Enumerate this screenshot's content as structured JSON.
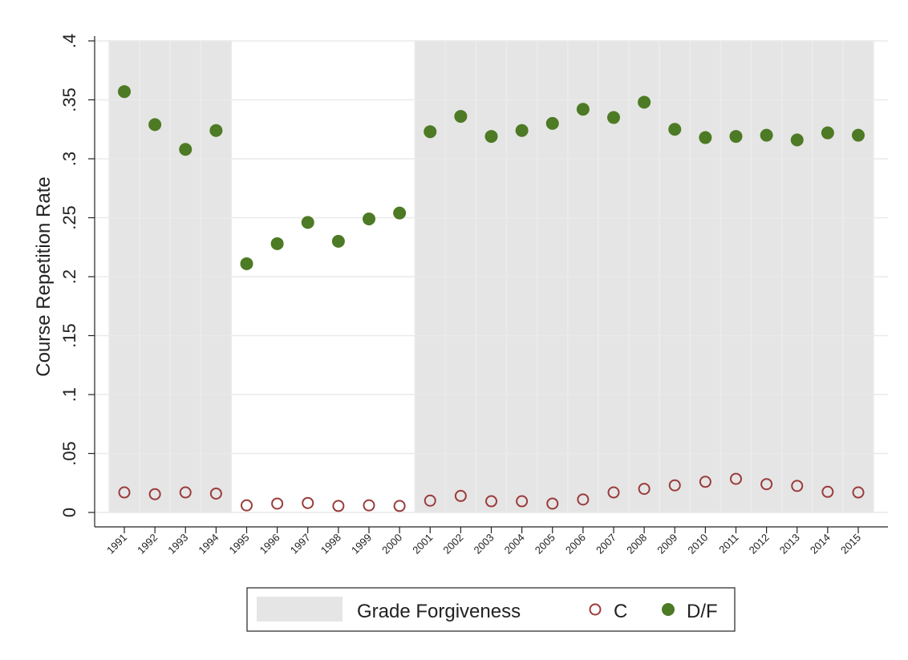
{
  "chart_data": {
    "type": "scatter",
    "y_label": "Course Repetition Rate",
    "categories": [
      "1991",
      "1992",
      "1993",
      "1994",
      "1995",
      "1996",
      "1997",
      "1998",
      "1999",
      "2000",
      "2001",
      "2002",
      "2003",
      "2004",
      "2005",
      "2006",
      "2007",
      "2008",
      "2009",
      "2010",
      "2011",
      "2012",
      "2013",
      "2014",
      "2015"
    ],
    "shaded": [
      true,
      true,
      true,
      true,
      false,
      false,
      false,
      false,
      false,
      false,
      true,
      true,
      true,
      true,
      true,
      true,
      true,
      true,
      true,
      true,
      true,
      true,
      true,
      true,
      true
    ],
    "shade_label": "Grade Forgiveness",
    "shade_color": "#e5e5e5",
    "series": [
      {
        "name": "C",
        "color": "#9b3b3b",
        "hollow": true,
        "values": [
          0.017,
          0.0155,
          0.017,
          0.016,
          0.006,
          0.0075,
          0.008,
          0.0055,
          0.006,
          0.0055,
          0.01,
          0.014,
          0.0095,
          0.0095,
          0.0075,
          0.011,
          0.017,
          0.02,
          0.023,
          0.026,
          0.0285,
          0.024,
          0.0225,
          0.0175,
          0.017
        ]
      },
      {
        "name": "D/F",
        "color": "#4d7a24",
        "hollow": false,
        "values": [
          0.357,
          0.329,
          0.308,
          0.324,
          0.211,
          0.228,
          0.246,
          0.23,
          0.249,
          0.254,
          0.323,
          0.336,
          0.319,
          0.324,
          0.33,
          0.342,
          0.335,
          0.348,
          0.325,
          0.318,
          0.319,
          0.32,
          0.316,
          0.322,
          0.32
        ]
      }
    ],
    "ylim": [
      0,
      0.4
    ],
    "yticks": [
      0,
      {
        "value": 0.05,
        "label": ".05"
      },
      {
        "value": 0.1,
        "label": ".1"
      },
      {
        "value": 0.15,
        "label": ".15"
      },
      {
        "value": 0.2,
        "label": ".2"
      },
      {
        "value": 0.25,
        "label": ".25"
      },
      {
        "value": 0.3,
        "label": ".3"
      },
      {
        "value": 0.35,
        "label": ".35"
      },
      {
        "value": 0.4,
        "label": ".4"
      }
    ],
    "grid": true
  }
}
